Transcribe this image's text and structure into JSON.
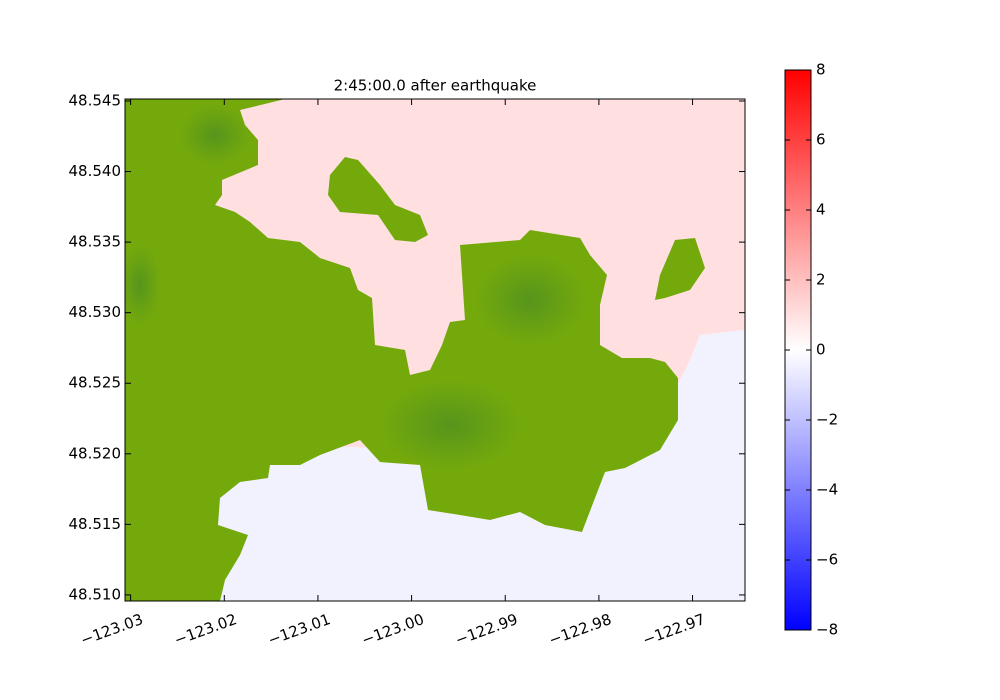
{
  "chart_data": {
    "type": "heatmap",
    "title": "2:45:00.0 after earthquake",
    "xlim": [
      -123.0306,
      -122.9644
    ],
    "ylim": [
      48.50957,
      48.54514
    ],
    "xticks": [
      {
        "value": -123.03,
        "label": "−123.03"
      },
      {
        "value": -123.02,
        "label": "−123.02"
      },
      {
        "value": -123.01,
        "label": "−123.01"
      },
      {
        "value": -123.0,
        "label": "−123.00"
      },
      {
        "value": -122.99,
        "label": "−122.99"
      },
      {
        "value": -122.98,
        "label": "−122.98"
      },
      {
        "value": -122.97,
        "label": "−122.97"
      }
    ],
    "yticks": [
      {
        "value": 48.51,
        "label": "48.510"
      },
      {
        "value": 48.515,
        "label": "48.515"
      },
      {
        "value": 48.52,
        "label": "48.520"
      },
      {
        "value": 48.525,
        "label": "48.525"
      },
      {
        "value": 48.53,
        "label": "48.530"
      },
      {
        "value": 48.535,
        "label": "48.535"
      },
      {
        "value": 48.54,
        "label": "48.540"
      },
      {
        "value": 48.545,
        "label": "48.545"
      }
    ],
    "values": [
      1.0,
      -0.4
    ],
    "land_color": "#74a90c",
    "clim": [
      -8,
      8
    ],
    "colorbar_ticks": [
      {
        "value": -8,
        "label": "−8"
      },
      {
        "value": -6,
        "label": "−6"
      },
      {
        "value": -4,
        "label": "−4"
      },
      {
        "value": -2,
        "label": "−2"
      },
      0,
      2,
      4,
      6,
      8
    ]
  }
}
